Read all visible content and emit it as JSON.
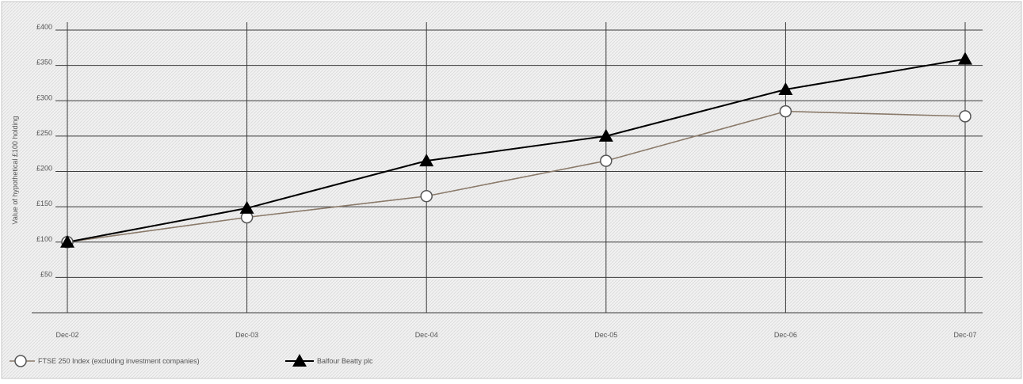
{
  "chart_data": {
    "type": "line",
    "ylabel": "Value of hypothetical £100 holding",
    "categories": [
      "Dec-02",
      "Dec-03",
      "Dec-04",
      "Dec-05",
      "Dec-06",
      "Dec-07"
    ],
    "y_tick_labels": [
      "£50",
      "£100",
      "£150",
      "£200",
      "£250",
      "£300",
      "£350",
      "£400"
    ],
    "ylim": [
      0,
      400
    ],
    "grid": true,
    "legend_position": "bottom-left",
    "series": [
      {
        "name": "FTSE 250 Index (excluding investment companies)",
        "values": [
          100,
          135,
          165,
          215,
          285,
          278
        ],
        "color": "#8a7a6a",
        "marker": "circle-open"
      },
      {
        "name": "Balfour Beatty plc",
        "values": [
          100,
          148,
          215,
          250,
          316,
          359
        ],
        "color": "#000000",
        "marker": "triangle-filled"
      }
    ]
  }
}
